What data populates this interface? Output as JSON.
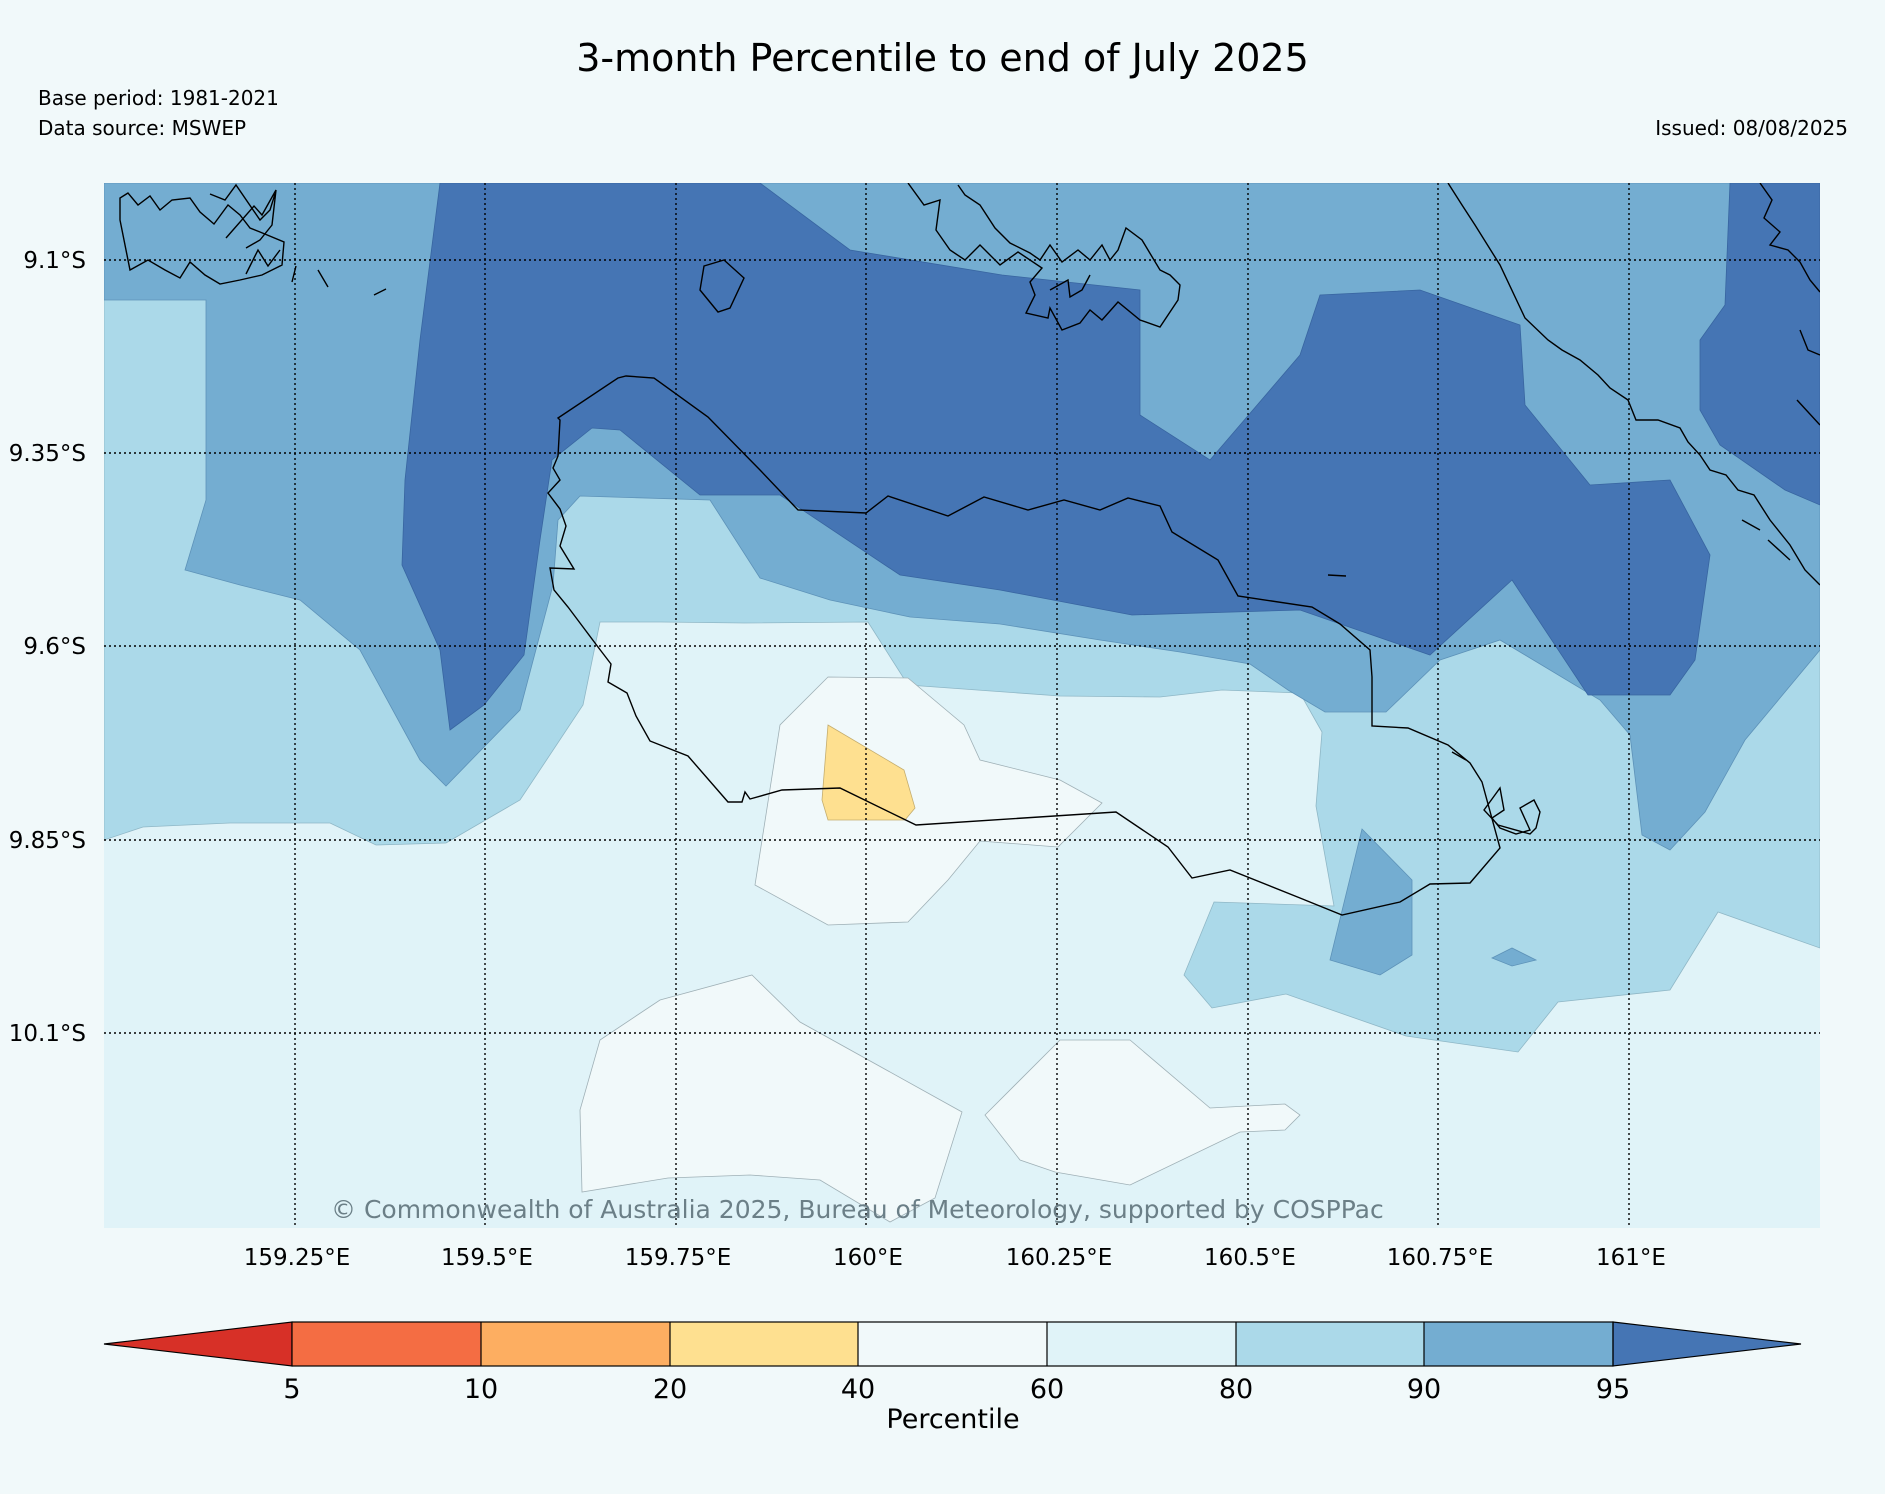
{
  "title": "3-month Percentile to end of July 2025",
  "base_period": "Base period: 1981-2021",
  "data_source": "Data source: MSWEP",
  "issued": "Issued: 08/08/2025",
  "copyright": "© Commonwealth of Australia 2025, Bureau of Meteorology, supported by COSPPac",
  "map": {
    "lat_labels": [
      "9.1°S",
      "9.35°S",
      "9.6°S",
      "9.85°S",
      "10.1°S"
    ],
    "lon_labels": [
      "159.25°E",
      "159.5°E",
      "159.75°E",
      "160°E",
      "160.25°E",
      "160.5°E",
      "160.75°E",
      "161°E"
    ]
  },
  "colorbar": {
    "label": "Percentile",
    "ticks": [
      "5",
      "10",
      "20",
      "40",
      "60",
      "80",
      "90",
      "95"
    ],
    "colors": [
      "#d73027",
      "#f46d43",
      "#fdae61",
      "#fee090",
      "#f1f9fa",
      "#e0f3f8",
      "#abd9e9",
      "#74add1",
      "#4575b4"
    ]
  }
}
